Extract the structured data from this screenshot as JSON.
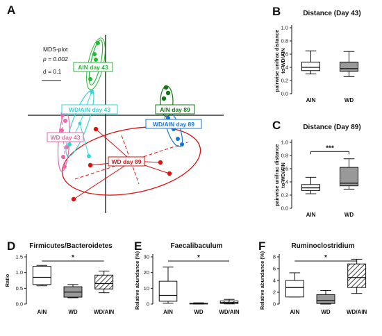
{
  "colors": {
    "ain43": "#22bb33",
    "wdain43": "#33d6d6",
    "wd43": "#ee66aa",
    "ain89": "#117711",
    "wdain89": "#1177dd",
    "wd89": "#dd1111",
    "box_gray": "#999999",
    "axis": "#111111"
  },
  "chart_data": [
    {
      "panel": "A",
      "type": "scatter",
      "title": "",
      "notes": [
        "MDS-plot",
        "p = 0.002",
        "d = 0.1"
      ],
      "groups": [
        {
          "name": "AIN day 43",
          "color": "ain43"
        },
        {
          "name": "WD/AIN day 43",
          "color": "wdain43"
        },
        {
          "name": "WD day 43",
          "color": "wd43"
        },
        {
          "name": "AIN day 89",
          "color": "ain89"
        },
        {
          "name": "WD/AIN day 89",
          "color": "wdain89"
        },
        {
          "name": "WD day 89",
          "color": "wd89"
        }
      ],
      "grid": false
    },
    {
      "panel": "B",
      "type": "box",
      "title": "Distance (Day 43)",
      "ylabel": "pairwise unifrac distance to WD/AIN",
      "ylim": [
        0,
        1.0
      ],
      "yticks": [
        "0.0",
        "0.2",
        "0.4",
        "0.6",
        "0.8",
        "1.0"
      ],
      "categories": [
        "AIN",
        "WD"
      ],
      "boxes": [
        {
          "min": 0.3,
          "q1": 0.35,
          "median": 0.4,
          "q3": 0.48,
          "max": 0.65,
          "fill": "white"
        },
        {
          "min": 0.26,
          "q1": 0.34,
          "median": 0.38,
          "q3": 0.48,
          "max": 0.64,
          "fill": "gray"
        }
      ],
      "significance": ""
    },
    {
      "panel": "C",
      "type": "box",
      "title": "Distance (Day 89)",
      "ylabel": "pairwise unifrac distance to WD/AIN",
      "ylim": [
        0,
        1.0
      ],
      "yticks": [
        "0.0",
        "0.2",
        "0.4",
        "0.6",
        "0.8",
        "1.0"
      ],
      "categories": [
        "AIN",
        "WD"
      ],
      "boxes": [
        {
          "min": 0.22,
          "q1": 0.27,
          "median": 0.31,
          "q3": 0.36,
          "max": 0.47,
          "fill": "white"
        },
        {
          "min": 0.29,
          "q1": 0.34,
          "median": 0.38,
          "q3": 0.62,
          "max": 0.75,
          "fill": "gray"
        }
      ],
      "significance": "***"
    },
    {
      "panel": "D",
      "type": "box",
      "title": "Firmicutes/Bacteroidetes",
      "ylabel": "Ratio",
      "ylim": [
        0,
        1.5
      ],
      "yticks": [
        "0.0",
        "0.5",
        "1.0",
        "1.5"
      ],
      "categories": [
        "AIN",
        "WD",
        "WD/AIN"
      ],
      "boxes": [
        {
          "min": 0.58,
          "q1": 0.62,
          "median": 0.85,
          "q3": 1.2,
          "max": 1.23,
          "fill": "white"
        },
        {
          "min": 0.2,
          "q1": 0.22,
          "median": 0.38,
          "q3": 0.55,
          "max": 0.62,
          "fill": "gray"
        },
        {
          "min": 0.36,
          "q1": 0.48,
          "median": 0.65,
          "q3": 0.92,
          "max": 1.05,
          "fill": "hatch"
        }
      ],
      "significance": "*"
    },
    {
      "panel": "E",
      "type": "box",
      "title": "Faecalibaculum",
      "ylabel": "Relative abundance (%)",
      "ylim": [
        0,
        30
      ],
      "yticks": [
        "0",
        "10",
        "20",
        "30"
      ],
      "categories": [
        "AIN",
        "WD",
        "WD/AIN"
      ],
      "boxes": [
        {
          "min": 0.5,
          "q1": 1.8,
          "median": 5.5,
          "q3": 14.5,
          "max": 23.5,
          "fill": "white"
        },
        {
          "min": 0.0,
          "q1": 0.1,
          "median": 0.3,
          "q3": 0.5,
          "max": 0.8,
          "fill": "gray"
        },
        {
          "min": 0.1,
          "q1": 0.4,
          "median": 1.0,
          "q3": 2.0,
          "max": 3.0,
          "fill": "hatch"
        }
      ],
      "significance": "*"
    },
    {
      "panel": "F",
      "type": "box",
      "title": "Ruminoclostridium",
      "ylabel": "Relative abundance (%)",
      "ylim": [
        0,
        8
      ],
      "yticks": [
        "0",
        "2",
        "4",
        "6",
        "8"
      ],
      "categories": [
        "AIN",
        "WD",
        "WD/AIN"
      ],
      "boxes": [
        {
          "min": 1.2,
          "q1": 1.2,
          "median": 2.8,
          "q3": 4.0,
          "max": 5.3,
          "fill": "white"
        },
        {
          "min": 0.0,
          "q1": 0.1,
          "median": 0.6,
          "q3": 1.6,
          "max": 2.3,
          "fill": "gray"
        },
        {
          "min": 1.8,
          "q1": 2.8,
          "median": 4.5,
          "q3": 6.8,
          "max": 7.6,
          "fill": "hatch"
        }
      ],
      "significance": "*"
    }
  ]
}
